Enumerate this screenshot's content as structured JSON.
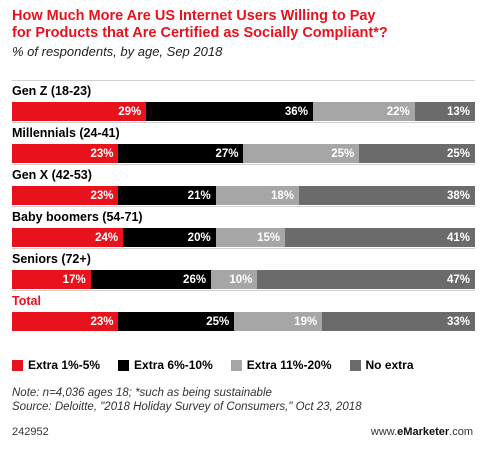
{
  "chart_data": {
    "type": "bar",
    "title": "How Much More Are US Internet Users Willing to Pay\nfor Products that Are Certified as Socially Compliant*?",
    "subtitle": "% of respondents, by age, Sep 2018",
    "categories": [
      "Gen Z (18-23)",
      "Millennials (24-41)",
      "Gen X (42-53)",
      "Baby boomers (54-71)",
      "Seniors (72+)",
      "Total"
    ],
    "series": [
      {
        "name": "Extra 1%-5%",
        "color": "#e8121c",
        "values": [
          29,
          23,
          23,
          24,
          17,
          23
        ]
      },
      {
        "name": "Extra 6%-10%",
        "color": "#000000",
        "values": [
          36,
          27,
          21,
          20,
          26,
          25
        ]
      },
      {
        "name": "Extra 11%-20%",
        "color": "#a6a6a6",
        "values": [
          22,
          25,
          18,
          15,
          10,
          19
        ]
      },
      {
        "name": "No extra",
        "color": "#6b6b6b",
        "values": [
          13,
          25,
          38,
          41,
          47,
          33
        ]
      }
    ],
    "stacked": true,
    "orientation": "horizontal",
    "value_suffix": "%",
    "legend_position": "bottom"
  },
  "notes": {
    "line1": "Note: n=4,036 ages 18; *such as being sustainable",
    "line2": "Source: Deloitte, \"2018 Holiday Survey of Consumers,\" Oct 23, 2018"
  },
  "footer": {
    "id": "242952",
    "brand_prefix": "www.",
    "brand_bold": "eMarketer",
    "brand_suffix": ".com"
  }
}
